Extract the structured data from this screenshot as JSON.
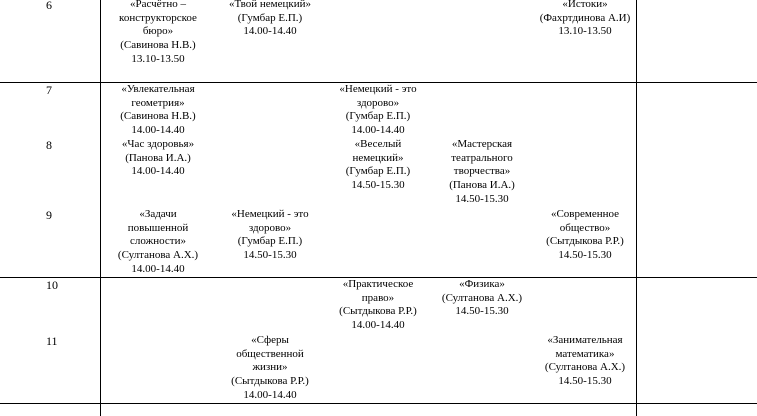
{
  "rows": [
    {
      "grade": "6",
      "entries": [
        {
          "col": 1,
          "lines": [
            "«Расчётно –",
            "конструкторское",
            "бюро»",
            "(Савинова Н.В.)",
            "13.10-13.50"
          ]
        },
        {
          "col": 2,
          "lines": [
            "«Твой немецкий»",
            "(Гумбар Е.П.)",
            "14.00-14.40"
          ]
        },
        {
          "col": 5,
          "lines": [
            "«Истоки»",
            "(Фахртдинова А.И)",
            "13.10-13.50"
          ]
        }
      ]
    },
    {
      "grade": "7",
      "entries": [
        {
          "col": 1,
          "lines": [
            "«Увлекательная",
            "геометрия»",
            "(Савинова Н.В.)",
            "14.00-14.40"
          ]
        },
        {
          "col": 3,
          "lines": [
            "«Немецкий - это",
            "здорово»",
            "(Гумбар Е.П.)",
            "14.00-14.40"
          ]
        }
      ]
    },
    {
      "grade": "8",
      "entries": [
        {
          "col": 1,
          "lines": [
            "«Час здоровья»",
            "(Панова И.А.)",
            "14.00-14.40"
          ]
        },
        {
          "col": 3,
          "lines": [
            "«Веселый",
            "немецкий»",
            "(Гумбар Е.П.)",
            "14.50-15.30"
          ]
        },
        {
          "col": 4,
          "lines": [
            "«Мастерская",
            "театрального",
            "творчества»",
            "(Панова И.А.)",
            "14.50-15.30"
          ]
        }
      ]
    },
    {
      "grade": "9",
      "entries": [
        {
          "col": 1,
          "lines": [
            "«Задачи",
            "повышенной",
            "сложности»",
            "(Султанова А.Х.)",
            "14.00-14.40"
          ]
        },
        {
          "col": 2,
          "lines": [
            "«Немецкий - это",
            "здорово»",
            "(Гумбар Е.П.)",
            "14.50-15.30"
          ]
        },
        {
          "col": 5,
          "lines": [
            "«Современное",
            "общество»",
            "(Сытдыкова Р.Р.)",
            "14.50-15.30"
          ]
        }
      ]
    },
    {
      "grade": "10",
      "entries": [
        {
          "col": 3,
          "lines": [
            "«Практическое",
            "право»",
            "(Сытдыкова Р.Р.)",
            "14.00-14.40"
          ]
        },
        {
          "col": 4,
          "lines": [
            "«Физика»",
            "(Султанова А.Х.)",
            "14.50-15.30"
          ]
        }
      ]
    },
    {
      "grade": "11",
      "entries": [
        {
          "col": 2,
          "lines": [
            "«Сферы",
            "общественной",
            "жизни»",
            "(Сытдыкова Р.Р.)",
            "14.00-14.40"
          ]
        },
        {
          "col": 5,
          "lines": [
            "«Занимательная",
            "математика»",
            "(Султанова А.Х.)",
            "14.50-15.30"
          ]
        }
      ]
    }
  ]
}
